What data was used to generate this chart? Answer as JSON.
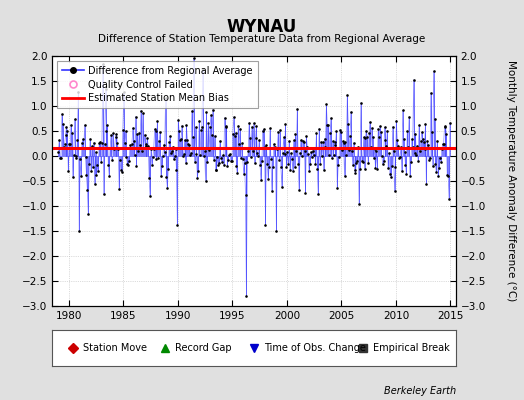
{
  "title": "WYNAU",
  "subtitle": "Difference of Station Temperature Data from Regional Average",
  "ylabel": "Monthly Temperature Anomaly Difference (°C)",
  "xlim": [
    1978.5,
    2015.5
  ],
  "ylim": [
    -3,
    2
  ],
  "yticks": [
    -3,
    -2.5,
    -2,
    -1.5,
    -1,
    -0.5,
    0,
    0.5,
    1,
    1.5,
    2
  ],
  "xticks": [
    1980,
    1985,
    1990,
    1995,
    2000,
    2005,
    2010,
    2015
  ],
  "mean_bias": 0.15,
  "background_color": "#e0e0e0",
  "plot_bg_color": "#ffffff",
  "line_color": "#3333ff",
  "marker_color": "#000000",
  "bias_color": "#ff0000",
  "credit": "Berkeley Earth",
  "seed": 12345
}
